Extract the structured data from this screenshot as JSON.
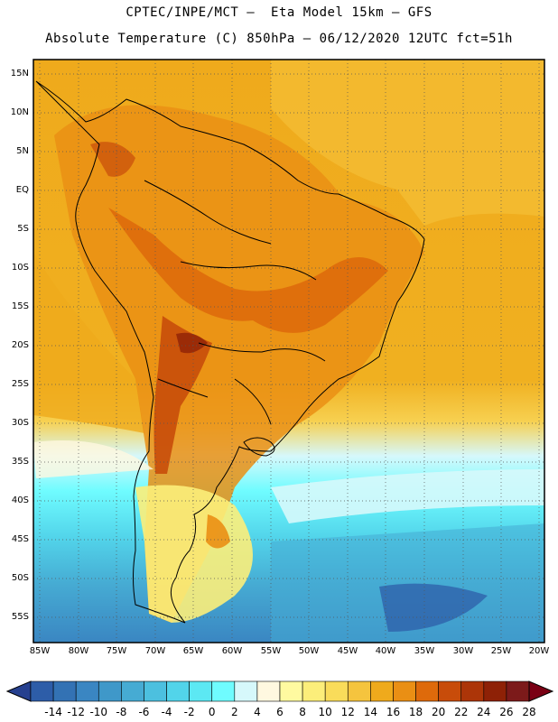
{
  "title_line1": "CPTEC/INPE/MCT –  Eta Model 15km – GFS",
  "title_line2": "Absolute Temperature (C) 850hPa – 06/12/2020 12UTC fct=51h",
  "lat_labels": [
    "15N",
    "10N",
    "5N",
    "EQ",
    "5S",
    "10S",
    "15S",
    "20S",
    "25S",
    "30S",
    "35S",
    "40S",
    "45S",
    "50S",
    "55S"
  ],
  "lon_labels": [
    "85W",
    "80W",
    "75W",
    "70W",
    "65W",
    "60W",
    "55W",
    "50W",
    "45W",
    "40W",
    "35W",
    "30W",
    "25W",
    "20W"
  ],
  "colorbar": {
    "labels": [
      "-14",
      "-12",
      "-10",
      "-8",
      "-6",
      "-4",
      "-2",
      "0",
      "2",
      "4",
      "6",
      "8",
      "10",
      "12",
      "14",
      "16",
      "18",
      "20",
      "22",
      "24",
      "26",
      "28"
    ],
    "colors": [
      "#26408f",
      "#2d5da8",
      "#3372b4",
      "#3a86c2",
      "#3f98c9",
      "#46abd3",
      "#4cc0df",
      "#52d4ea",
      "#5ce8f3",
      "#6ffcff",
      "#d6f8fb",
      "#fff8e0",
      "#fffaa0",
      "#fcee7a",
      "#f9dc5a",
      "#f5c43e",
      "#efaa1c",
      "#ea8f14",
      "#de6a0b",
      "#c84c0a",
      "#ac3508",
      "#8e2106",
      "#7c1a1a",
      "#7a0014"
    ],
    "grid": "dotted"
  }
}
